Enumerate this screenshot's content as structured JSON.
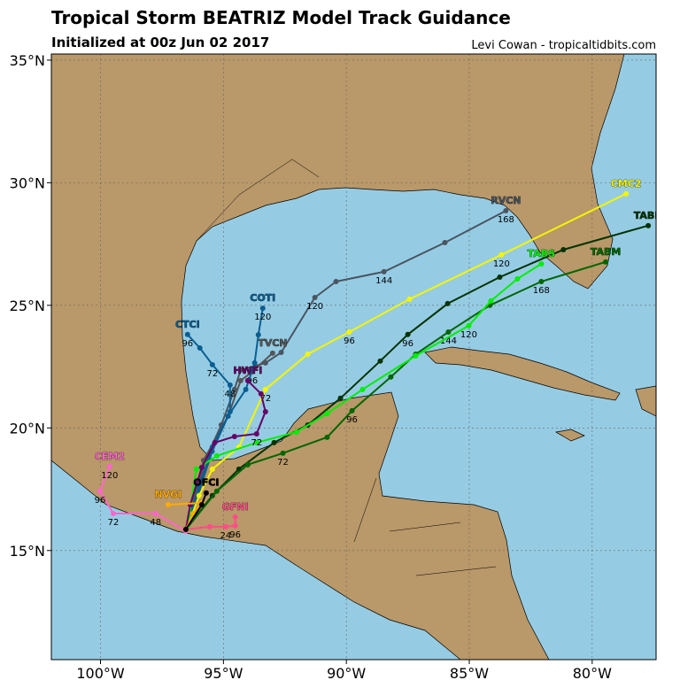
{
  "chart_data": {
    "type": "map",
    "title": "Tropical Storm BEATRIZ Model Track Guidance",
    "subtitle": "Initialized at 00z Jun 02 2017",
    "credit": "Levi Cowan - tropicaltidbits.com",
    "xlim": [
      -102,
      -77.4
    ],
    "ylim": [
      10.55,
      35.25
    ],
    "xticks": [
      {
        "value": -100,
        "label": "100°W"
      },
      {
        "value": -95,
        "label": "95°W"
      },
      {
        "value": -90,
        "label": "90°W"
      },
      {
        "value": -85,
        "label": "85°W"
      },
      {
        "value": -80,
        "label": "80°W"
      }
    ],
    "yticks": [
      {
        "value": 15,
        "label": "15°N"
      },
      {
        "value": 20,
        "label": "20°N"
      },
      {
        "value": 25,
        "label": "25°N"
      },
      {
        "value": 30,
        "label": "30°N"
      },
      {
        "value": 35,
        "label": "35°N"
      }
    ],
    "grid": true,
    "series": [
      {
        "name": "RVCN",
        "color": "#4a5560",
        "lon": [
          -96.53,
          -96.1,
          -95.74,
          -95.09,
          -94.55,
          -94.3,
          -93.29,
          -92.65,
          -91.28,
          -90.42,
          -88.47,
          -85.99,
          -83.51
        ],
        "lat": [
          15.86,
          17.24,
          18.68,
          20.12,
          21.57,
          22.36,
          22.65,
          23.08,
          25.32,
          25.97,
          26.37,
          27.56,
          28.86
        ],
        "hours": [
          null,
          null,
          null,
          null,
          null,
          null,
          null,
          null,
          120,
          null,
          144,
          null,
          168
        ]
      },
      {
        "name": "TVCN",
        "color": "#555555",
        "lon": [
          -96.53,
          -95.81,
          -94.81,
          -94.3,
          -93.83,
          -93.0
        ],
        "lat": [
          15.86,
          18.68,
          20.48,
          21.93,
          22.29,
          23.05
        ],
        "hours": [
          null,
          null,
          null,
          null,
          96,
          null
        ]
      },
      {
        "name": "COTI",
        "color": "#0b5e91",
        "lon": [
          -96.46,
          -95.99,
          -95.46,
          -94.81,
          -94.09,
          -93.73,
          -93.58,
          -93.4
        ],
        "lat": [
          15.9,
          17.42,
          19.04,
          20.48,
          21.57,
          22.65,
          23.8,
          24.88
        ],
        "hours": [
          null,
          null,
          null,
          null,
          null,
          null,
          null,
          120
        ]
      },
      {
        "name": "CTCI",
        "color": "#0b5e91",
        "lon": [
          -96.53,
          -95.99,
          -95.45,
          -94.73,
          -94.73,
          -95.45,
          -95.96,
          -96.46
        ],
        "lat": [
          15.86,
          17.6,
          19.22,
          20.66,
          21.75,
          22.58,
          23.26,
          23.81
        ],
        "hours": [
          null,
          null,
          null,
          null,
          48,
          72,
          null,
          96
        ]
      },
      {
        "name": "CMC2",
        "color": "#f5f500",
        "lon": [
          -96.53,
          -95.99,
          -95.45,
          -94.37,
          -93.29,
          -91.57,
          -89.88,
          -87.43,
          -83.69,
          -78.62
        ],
        "lat": [
          15.79,
          17.24,
          18.32,
          19.22,
          21.57,
          23.01,
          23.91,
          25.25,
          27.06,
          29.55
        ],
        "hours": [
          null,
          null,
          null,
          null,
          72,
          null,
          96,
          null,
          120,
          null
        ]
      },
      {
        "name": "TABD",
        "color": "#003300",
        "lon": [
          -96.53,
          -95.45,
          -94.37,
          -92.94,
          -91.57,
          -90.24,
          -88.62,
          -87.5,
          -85.88,
          -83.76,
          -81.17,
          -77.72
        ],
        "lat": [
          15.86,
          17.24,
          18.32,
          19.4,
          20.12,
          21.21,
          22.73,
          23.81,
          25.07,
          26.15,
          27.27,
          28.25
        ],
        "hours": [
          null,
          null,
          null,
          null,
          null,
          null,
          null,
          96,
          null,
          null,
          null,
          null
        ]
      },
      {
        "name": "TABM",
        "color": "#006600",
        "lon": [
          -96.53,
          -95.27,
          -94.01,
          -92.58,
          -90.78,
          -89.77,
          -88.19,
          -87.18,
          -85.85,
          -84.16,
          -82.07,
          -79.45
        ],
        "lat": [
          15.86,
          17.42,
          18.5,
          18.97,
          19.62,
          20.7,
          22.08,
          23.01,
          23.91,
          25.0,
          25.97,
          26.77
        ],
        "hours": [
          null,
          null,
          null,
          72,
          null,
          96,
          null,
          null,
          144,
          null,
          168,
          null
        ]
      },
      {
        "name": "TABS",
        "color": "#00ee00",
        "lon": [
          -96.46,
          -96.1,
          -95.27,
          -93.65,
          -92.03,
          -90.78,
          -89.34,
          -87.18,
          -85.02,
          -84.12,
          -83.04,
          -82.07
        ],
        "lat": [
          15.9,
          18.32,
          18.86,
          19.4,
          19.83,
          20.59,
          21.57,
          22.94,
          24.17,
          25.18,
          26.08,
          26.69
        ],
        "hours": [
          null,
          null,
          null,
          null,
          null,
          null,
          null,
          null,
          120,
          null,
          null,
          null
        ]
      },
      {
        "name": "HWFI",
        "color": "#660066",
        "lon": [
          -96.53,
          -96.35,
          -95.88,
          -95.35,
          -94.55,
          -93.65,
          -93.29,
          -93.47,
          -94.01
        ],
        "lat": [
          15.86,
          16.87,
          18.39,
          19.4,
          19.65,
          19.76,
          20.66,
          21.39,
          21.93
        ],
        "hours": [
          null,
          null,
          null,
          null,
          null,
          72,
          null,
          null,
          null
        ]
      },
      {
        "name": "CEM2",
        "color": "#ff66cc",
        "lon": [
          -96.53,
          -97.76,
          -99.48,
          -100.02,
          -99.63
        ],
        "lat": [
          15.79,
          16.51,
          16.51,
          17.42,
          18.43
        ],
        "hours": [
          null,
          48,
          72,
          96,
          120
        ]
      },
      {
        "name": "GFNI",
        "color": "#ff4d88",
        "lon": [
          -96.53,
          -95.56,
          -94.91,
          -94.52,
          -94.52
        ],
        "lat": [
          15.86,
          15.97,
          15.97,
          16.01,
          16.37
        ],
        "hours": [
          null,
          null,
          24,
          96,
          null
        ]
      },
      {
        "name": "NVGI",
        "color": "#ffaa00",
        "lon": [
          -96.53,
          -96.24,
          -95.88,
          -97.25
        ],
        "lat": [
          15.86,
          16.51,
          16.94,
          16.87
        ]
      },
      {
        "name": "OFCI",
        "color": "#000000",
        "lon": [
          -96.53,
          -95.88,
          -95.7
        ],
        "lat": [
          15.86,
          16.87,
          17.35
        ]
      }
    ]
  }
}
